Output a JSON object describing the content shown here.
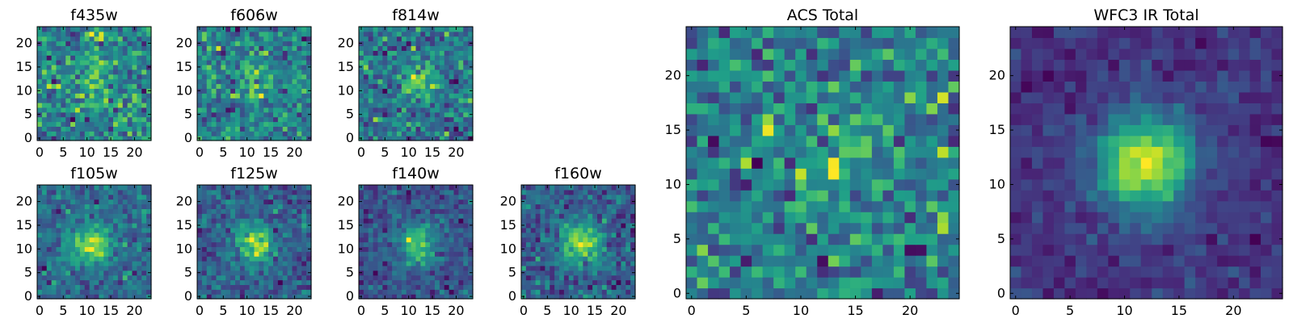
{
  "chart_data": [
    {
      "type": "heatmap",
      "title": "f435w",
      "grid_size": 24,
      "xlim": [
        0,
        24
      ],
      "ylim": [
        0,
        24
      ],
      "xticks": [
        0,
        5,
        10,
        15,
        20
      ],
      "yticks": [
        0,
        5,
        10,
        15,
        20
      ],
      "xtick_labels": [
        "0",
        "5",
        "10",
        "15",
        "20"
      ],
      "ytick_labels": [
        "0",
        "5",
        "10",
        "15",
        "20"
      ],
      "colormap": "viridis",
      "source_peak": [
        11,
        12
      ],
      "source_amplitude": 0.25,
      "noise": 0.5,
      "seed": 11
    },
    {
      "type": "heatmap",
      "title": "f606w",
      "grid_size": 24,
      "xlim": [
        0,
        24
      ],
      "ylim": [
        0,
        24
      ],
      "xticks": [
        0,
        5,
        10,
        15,
        20
      ],
      "yticks": [
        0,
        5,
        10,
        15,
        20
      ],
      "xtick_labels": [
        "0",
        "5",
        "10",
        "15",
        "20"
      ],
      "ytick_labels": [
        "0",
        "5",
        "10",
        "15",
        "20"
      ],
      "colormap": "viridis",
      "source_peak": [
        11,
        12
      ],
      "source_amplitude": 0.2,
      "noise": 0.5,
      "seed": 23
    },
    {
      "type": "heatmap",
      "title": "f814w",
      "grid_size": 24,
      "xlim": [
        0,
        24
      ],
      "ylim": [
        0,
        24
      ],
      "xticks": [
        0,
        5,
        10,
        15,
        20
      ],
      "yticks": [
        0,
        5,
        10,
        15,
        20
      ],
      "xtick_labels": [
        "0",
        "5",
        "10",
        "15",
        "20"
      ],
      "ytick_labels": [
        "0",
        "5",
        "10",
        "15",
        "20"
      ],
      "colormap": "viridis",
      "source_peak": [
        12,
        12
      ],
      "source_amplitude": 0.35,
      "noise": 0.5,
      "seed": 37
    },
    {
      "type": "heatmap",
      "title": "f105w",
      "grid_size": 24,
      "xlim": [
        0,
        24
      ],
      "ylim": [
        0,
        24
      ],
      "xticks": [
        0,
        5,
        10,
        15,
        20
      ],
      "yticks": [
        0,
        5,
        10,
        15,
        20
      ],
      "xtick_labels": [
        "0",
        "5",
        "10",
        "15",
        "20"
      ],
      "ytick_labels": [
        "0",
        "5",
        "10",
        "15",
        "20"
      ],
      "colormap": "viridis",
      "source_peak": [
        11,
        11
      ],
      "source_amplitude": 0.6,
      "noise": 0.35,
      "seed": 41
    },
    {
      "type": "heatmap",
      "title": "f125w",
      "grid_size": 24,
      "xlim": [
        0,
        24
      ],
      "ylim": [
        0,
        24
      ],
      "xticks": [
        0,
        5,
        10,
        15,
        20
      ],
      "yticks": [
        0,
        5,
        10,
        15,
        20
      ],
      "xtick_labels": [
        "0",
        "5",
        "10",
        "15",
        "20"
      ],
      "ytick_labels": [
        "0",
        "5",
        "10",
        "15",
        "20"
      ],
      "colormap": "viridis",
      "source_peak": [
        12,
        11
      ],
      "source_amplitude": 0.6,
      "noise": 0.35,
      "seed": 53
    },
    {
      "type": "heatmap",
      "title": "f140w",
      "grid_size": 24,
      "xlim": [
        0,
        24
      ],
      "ylim": [
        0,
        24
      ],
      "xticks": [
        0,
        5,
        10,
        15,
        20
      ],
      "yticks": [
        0,
        5,
        10,
        15,
        20
      ],
      "xtick_labels": [
        "0",
        "5",
        "10",
        "15",
        "20"
      ],
      "ytick_labels": [
        "0",
        "5",
        "10",
        "15",
        "20"
      ],
      "colormap": "viridis",
      "source_peak": [
        12,
        11
      ],
      "source_amplitude": 0.65,
      "noise": 0.35,
      "seed": 67
    },
    {
      "type": "heatmap",
      "title": "f160w",
      "grid_size": 24,
      "xlim": [
        0,
        24
      ],
      "ylim": [
        0,
        24
      ],
      "xticks": [
        0,
        5,
        10,
        15,
        20
      ],
      "yticks": [
        0,
        5,
        10,
        15,
        20
      ],
      "xtick_labels": [
        "0",
        "5",
        "10",
        "15",
        "20"
      ],
      "ytick_labels": [
        "0",
        "5",
        "10",
        "15",
        "20"
      ],
      "colormap": "viridis",
      "source_peak": [
        12,
        11
      ],
      "source_amplitude": 0.6,
      "noise": 0.35,
      "seed": 79
    },
    {
      "type": "heatmap",
      "title": "ACS Total",
      "grid_size": 25,
      "xlim": [
        0,
        25
      ],
      "ylim": [
        0,
        25
      ],
      "xticks": [
        0,
        5,
        10,
        15,
        20
      ],
      "yticks": [
        0,
        5,
        10,
        15,
        20
      ],
      "xtick_labels": [
        "0",
        "5",
        "10",
        "15",
        "20"
      ],
      "ytick_labels": [
        "0",
        "5",
        "10",
        "15",
        "20"
      ],
      "colormap": "viridis",
      "source_peak": [
        13,
        12
      ],
      "source_amplitude": 0.15,
      "noise": 0.3,
      "seed": 97
    },
    {
      "type": "heatmap",
      "title": "WFC3 IR Total",
      "grid_size": 25,
      "xlim": [
        0,
        25
      ],
      "ylim": [
        0,
        25
      ],
      "xticks": [
        0,
        5,
        10,
        15,
        20
      ],
      "yticks": [
        0,
        5,
        10,
        15,
        20
      ],
      "xtick_labels": [
        "0",
        "5",
        "10",
        "15",
        "20"
      ],
      "ytick_labels": [
        "0",
        "5",
        "10",
        "15",
        "20"
      ],
      "colormap": "viridis",
      "source_peak": [
        12,
        12
      ],
      "source_amplitude": 0.9,
      "noise": 0.18,
      "seed": 131
    }
  ]
}
